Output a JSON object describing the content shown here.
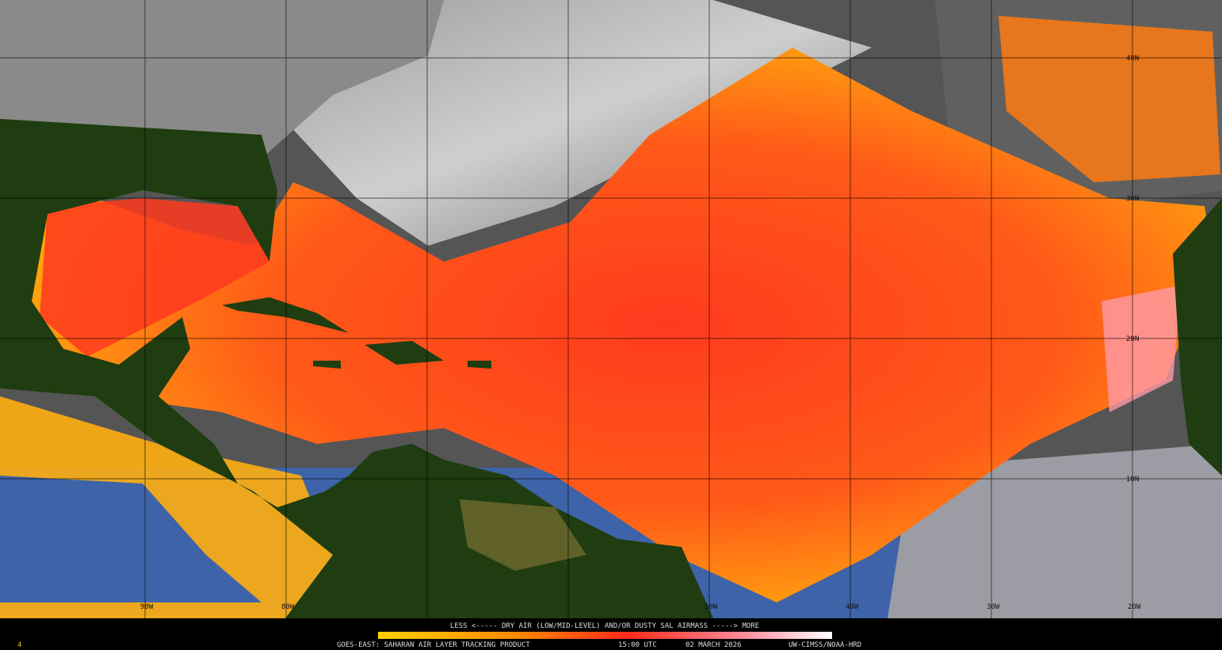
{
  "map": {
    "longitude_labels": [
      "90W",
      "80W",
      "50W",
      "40W",
      "30W",
      "20W"
    ],
    "latitude_labels": [
      "40N",
      "30N",
      "20N",
      "10N"
    ]
  },
  "legend": {
    "text": "LESS <----- DRY AIR (LOW/MID-LEVEL) AND/OR DUSTY SAL AIRMASS -----> MORE"
  },
  "footer": {
    "frame": "4",
    "product": "GOES-EAST: SAHARAN AIR LAYER TRACKING PRODUCT",
    "time": "15:00 UTC",
    "date": "02 MARCH 2026",
    "credit": "UW-CIMSS/NOAA-HRD"
  }
}
